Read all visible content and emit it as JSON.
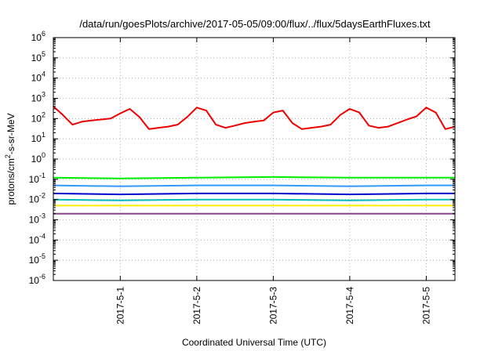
{
  "chart_data": {
    "type": "line",
    "title": "/data/run/goesPlots/archive/2017-05-05/09:00/flux/../flux/5daysEarthFluxes.txt",
    "xlabel": "Coordinated Universal Time (UTC)",
    "ylabel": "protons/cm2-s-sr-MeV",
    "ylabel_parts": {
      "pre": "protons/cm",
      "sup": "2",
      "post": "-s-sr-MeV"
    },
    "yscale": "log",
    "ylim": [
      1e-06,
      1000000.0
    ],
    "y_ticks": [
      {
        "exp": -6,
        "label": "10",
        "sup": "-6"
      },
      {
        "exp": -5,
        "label": "10",
        "sup": "-5"
      },
      {
        "exp": -4,
        "label": "10",
        "sup": "-4"
      },
      {
        "exp": -3,
        "label": "10",
        "sup": "-3"
      },
      {
        "exp": -2,
        "label": "10",
        "sup": "-2"
      },
      {
        "exp": -1,
        "label": "10",
        "sup": "-1"
      },
      {
        "exp": 0,
        "label": "10",
        "sup": "0"
      },
      {
        "exp": 1,
        "label": "10",
        "sup": "1"
      },
      {
        "exp": 2,
        "label": "10",
        "sup": "2"
      },
      {
        "exp": 3,
        "label": "10",
        "sup": "3"
      },
      {
        "exp": 4,
        "label": "10",
        "sup": "4"
      },
      {
        "exp": 5,
        "label": "10",
        "sup": "5"
      },
      {
        "exp": 6,
        "label": "10",
        "sup": "6"
      }
    ],
    "xlim": [
      "2017-04-30T03:00",
      "2017-05-05T09:00"
    ],
    "x_ticks": [
      {
        "value": "2017-05-01T00:00",
        "label": "2017-5-1"
      },
      {
        "value": "2017-05-02T00:00",
        "label": "2017-5-2"
      },
      {
        "value": "2017-05-03T00:00",
        "label": "2017-5-3"
      },
      {
        "value": "2017-05-04T00:00",
        "label": "2017-5-4"
      },
      {
        "value": "2017-05-05T00:00",
        "label": "2017-5-5"
      }
    ],
    "grid": true,
    "legend": "none",
    "series": [
      {
        "color": "#ee0000",
        "x": [
          "2017-04-30T03:00",
          "2017-04-30T06:00",
          "2017-04-30T09:00",
          "2017-04-30T12:00",
          "2017-04-30T15:00",
          "2017-04-30T18:00",
          "2017-04-30T21:00",
          "2017-05-01T00:00",
          "2017-05-01T03:00",
          "2017-05-01T06:00",
          "2017-05-01T09:00",
          "2017-05-01T12:00",
          "2017-05-01T15:00",
          "2017-05-01T18:00",
          "2017-05-01T21:00",
          "2017-05-02T00:00",
          "2017-05-02T03:00",
          "2017-05-02T06:00",
          "2017-05-02T09:00",
          "2017-05-02T12:00",
          "2017-05-02T15:00",
          "2017-05-02T18:00",
          "2017-05-02T21:00",
          "2017-05-03T00:00",
          "2017-05-03T03:00",
          "2017-05-03T06:00",
          "2017-05-03T09:00",
          "2017-05-03T12:00",
          "2017-05-03T15:00",
          "2017-05-03T18:00",
          "2017-05-03T21:00",
          "2017-05-04T00:00",
          "2017-05-04T03:00",
          "2017-05-04T06:00",
          "2017-05-04T09:00",
          "2017-05-04T12:00",
          "2017-05-04T15:00",
          "2017-05-04T18:00",
          "2017-05-04T21:00",
          "2017-05-05T00:00",
          "2017-05-05T03:00",
          "2017-05-05T06:00",
          "2017-05-05T09:00"
        ],
        "values": [
          400,
          150,
          50,
          70,
          80,
          90,
          100,
          180,
          300,
          120,
          30,
          35,
          40,
          50,
          120,
          350,
          250,
          50,
          35,
          45,
          60,
          70,
          80,
          200,
          250,
          60,
          30,
          35,
          40,
          50,
          150,
          300,
          200,
          45,
          35,
          40,
          60,
          90,
          130,
          350,
          200,
          30,
          40
        ]
      },
      {
        "color": "#00ee00",
        "x": [
          "2017-04-30T03:00",
          "2017-05-01T00:00",
          "2017-05-02T00:00",
          "2017-05-03T00:00",
          "2017-05-04T00:00",
          "2017-05-05T00:00",
          "2017-05-05T09:00"
        ],
        "values": [
          0.12,
          0.11,
          0.12,
          0.13,
          0.12,
          0.12,
          0.12
        ]
      },
      {
        "color": "#3399ff",
        "x": [
          "2017-04-30T03:00",
          "2017-05-01T00:00",
          "2017-05-02T00:00",
          "2017-05-03T00:00",
          "2017-05-04T00:00",
          "2017-05-05T00:00",
          "2017-05-05T09:00"
        ],
        "values": [
          0.05,
          0.045,
          0.05,
          0.05,
          0.045,
          0.05,
          0.05
        ]
      },
      {
        "color": "#0000cc",
        "x": [
          "2017-04-30T03:00",
          "2017-05-01T00:00",
          "2017-05-02T00:00",
          "2017-05-03T00:00",
          "2017-05-04T00:00",
          "2017-05-05T00:00",
          "2017-05-05T09:00"
        ],
        "values": [
          0.02,
          0.018,
          0.02,
          0.02,
          0.018,
          0.02,
          0.02
        ]
      },
      {
        "color": "#00bbbb",
        "x": [
          "2017-04-30T03:00",
          "2017-05-01T00:00",
          "2017-05-02T00:00",
          "2017-05-03T00:00",
          "2017-05-04T00:00",
          "2017-05-05T00:00",
          "2017-05-05T09:00"
        ],
        "values": [
          0.01,
          0.009,
          0.01,
          0.01,
          0.009,
          0.01,
          0.01
        ]
      },
      {
        "color": "#ffee00",
        "x": [
          "2017-04-30T03:00",
          "2017-05-01T00:00",
          "2017-05-02T00:00",
          "2017-05-03T00:00",
          "2017-05-04T00:00",
          "2017-05-05T00:00",
          "2017-05-05T09:00"
        ],
        "values": [
          0.005,
          0.005,
          0.005,
          0.005,
          0.005,
          0.005,
          0.005
        ]
      },
      {
        "color": "#884488",
        "x": [
          "2017-04-30T03:00",
          "2017-05-01T00:00",
          "2017-05-02T00:00",
          "2017-05-03T00:00",
          "2017-05-04T00:00",
          "2017-05-05T00:00",
          "2017-05-05T09:00"
        ],
        "values": [
          0.002,
          0.002,
          0.002,
          0.002,
          0.002,
          0.002,
          0.002
        ]
      }
    ]
  }
}
